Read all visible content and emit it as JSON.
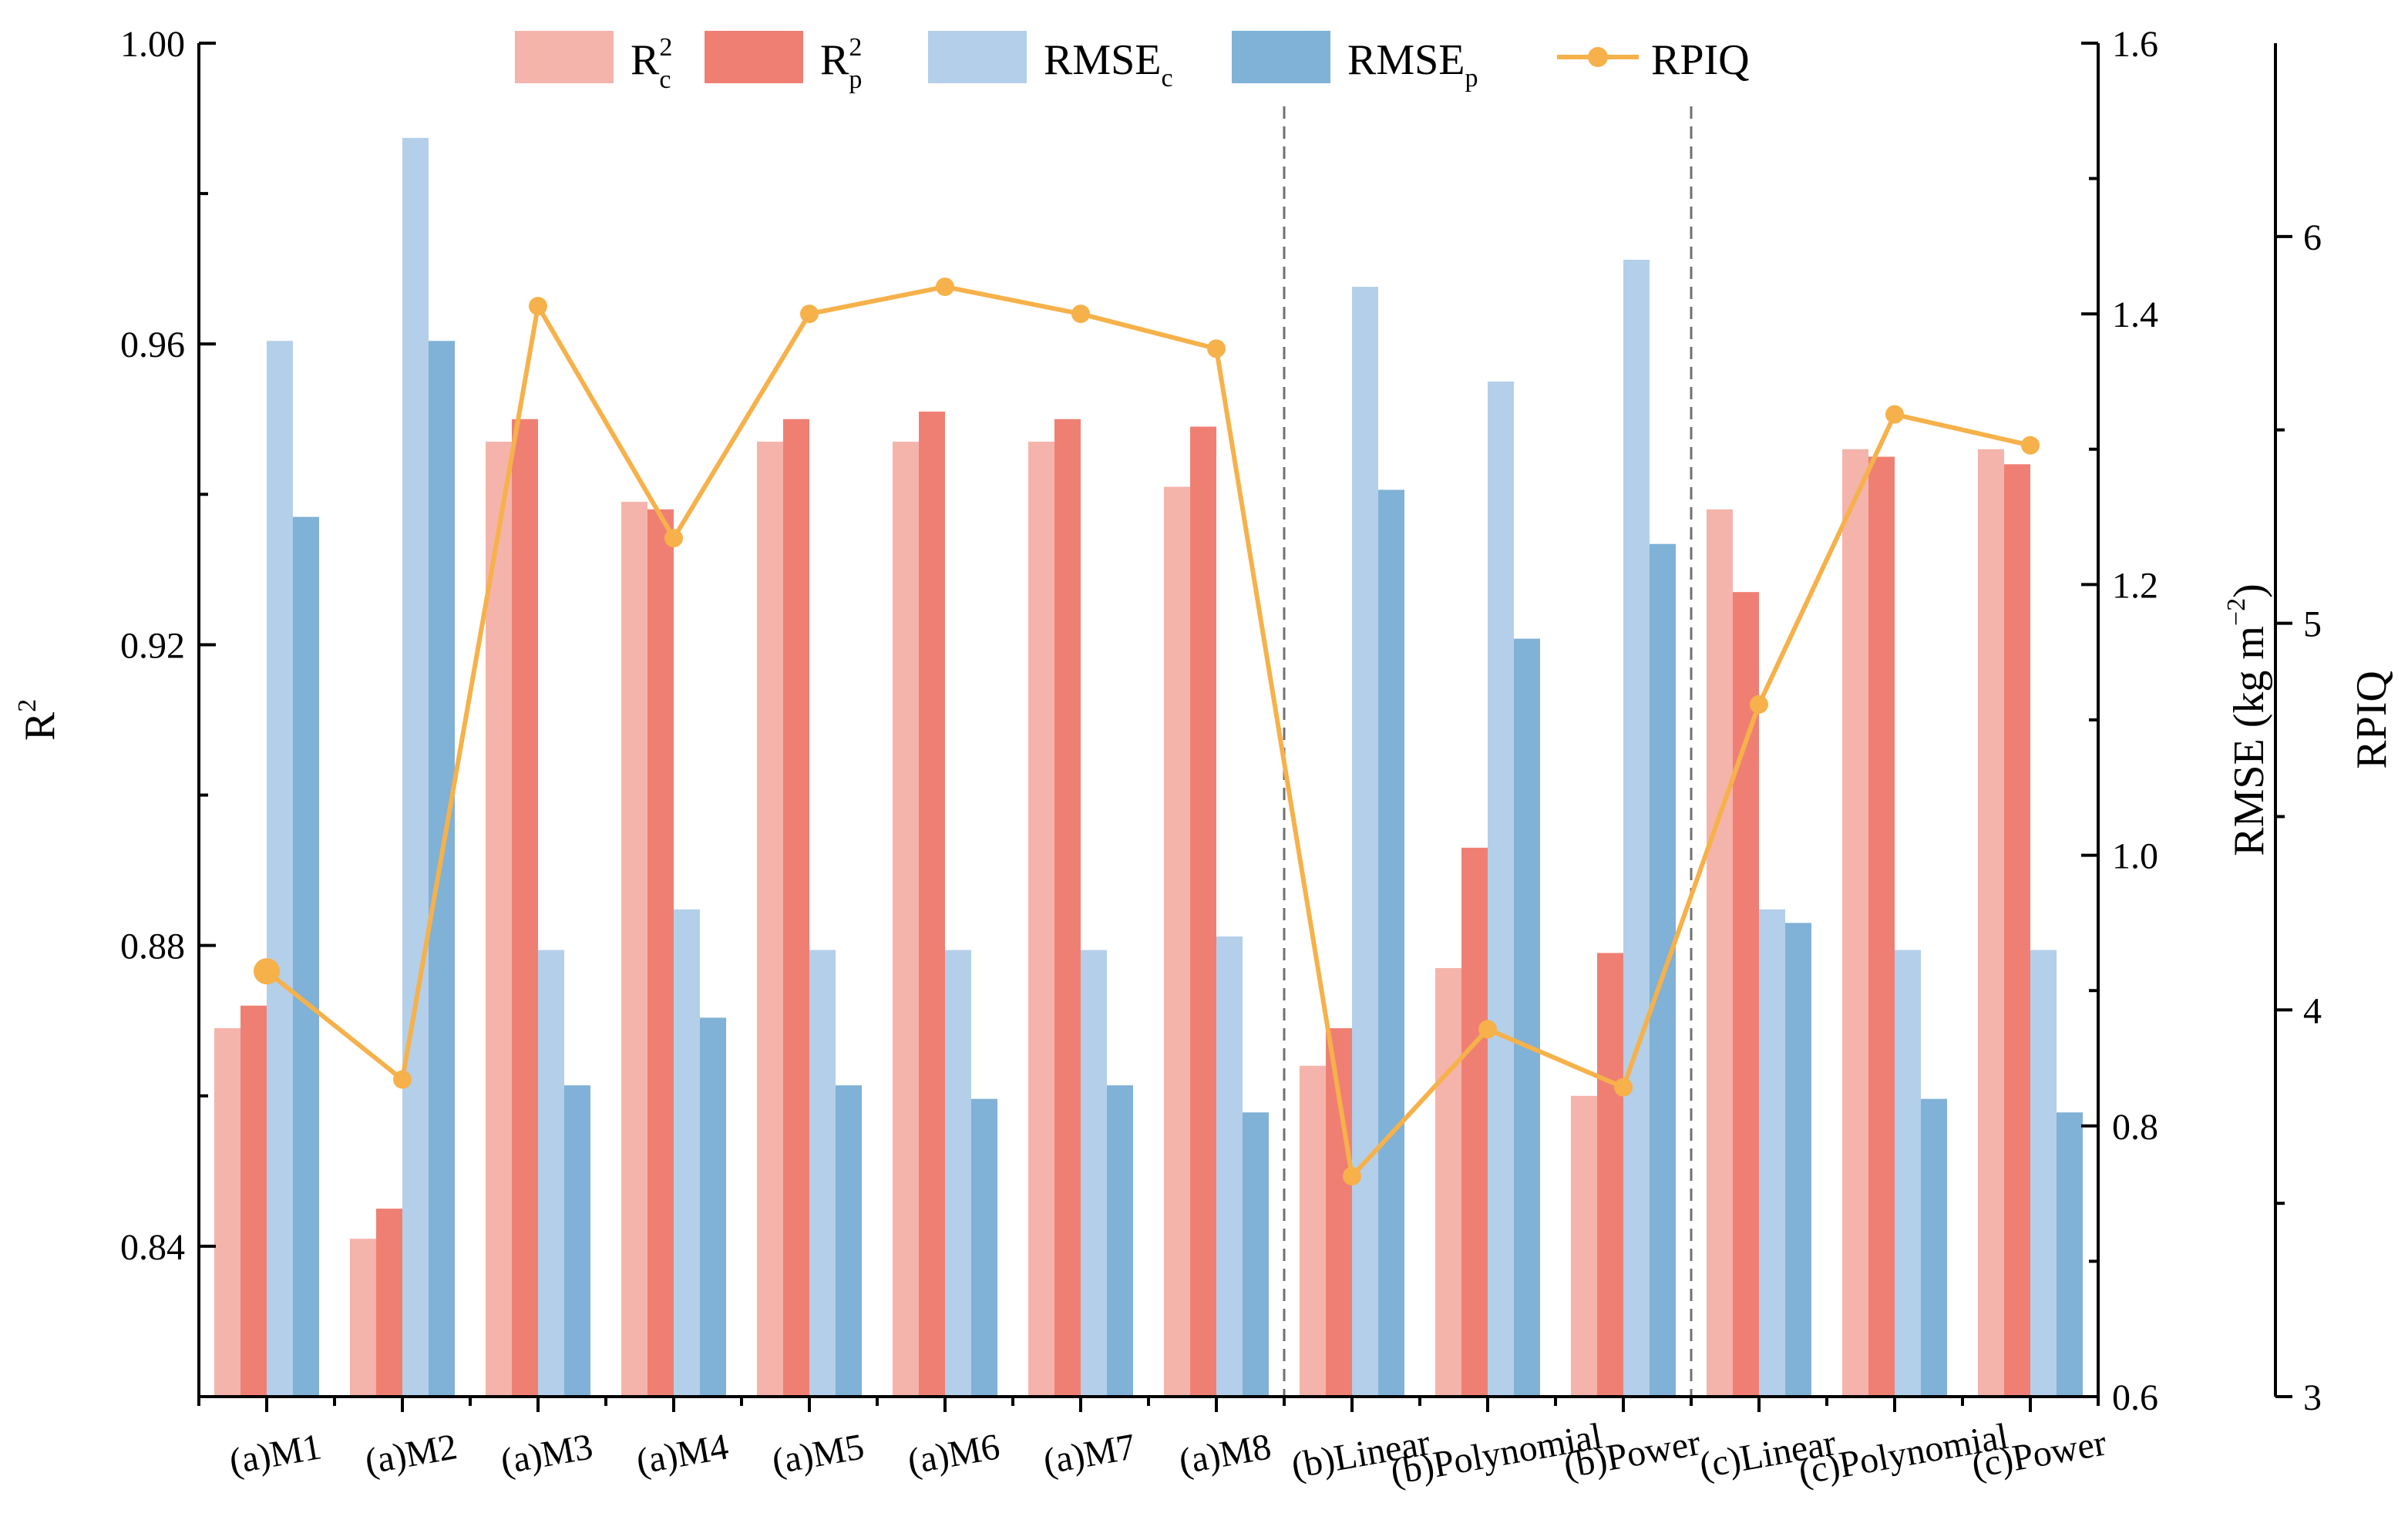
{
  "chart_data": {
    "type": "bar",
    "categories": [
      "(a)M1",
      "(a)M2",
      "(a)M3",
      "(a)M4",
      "(a)M5",
      "(a)M6",
      "(a)M7",
      "(a)M8",
      "(b)Linear",
      "(b)Polynomial",
      "(b)Power",
      "(c)Linear",
      "(c)Polynomial",
      "(c)Power"
    ],
    "group_dividers_after": [
      7,
      10
    ],
    "axes": {
      "r2": {
        "label": "R",
        "label_sup": "2",
        "ylim": [
          0.82,
          1.0
        ],
        "major_ticks": [
          0.84,
          0.88,
          0.92,
          0.96,
          1.0
        ],
        "tick_labels": [
          "0.84",
          "0.88",
          "0.92",
          "0.96",
          "1.00"
        ]
      },
      "rmse": {
        "label": "RMSE (kg m",
        "label_sup": "−2",
        "label_end": ")",
        "ylim": [
          0.6,
          1.6
        ],
        "major_ticks": [
          0.6,
          0.8,
          1.0,
          1.2,
          1.4,
          1.6
        ],
        "tick_labels": [
          "0.6",
          "0.8",
          "1.0",
          "1.2",
          "1.4",
          "1.6"
        ]
      },
      "rpiq": {
        "label": "RPIQ",
        "ylim": [
          3,
          6.5
        ],
        "major_ticks": [
          3,
          4,
          5,
          6
        ],
        "tick_labels": [
          "3",
          "4",
          "5",
          "6"
        ]
      }
    },
    "series": [
      {
        "key": "r2c",
        "name": "R",
        "sup": "2",
        "sub": "c",
        "axis": "r2",
        "color": "#f4b4ab",
        "values": [
          0.869,
          0.841,
          0.947,
          0.939,
          0.947,
          0.947,
          0.947,
          0.941,
          0.864,
          0.877,
          0.86,
          0.938,
          0.946,
          0.946
        ]
      },
      {
        "key": "r2p",
        "name": "R",
        "sup": "2",
        "sub": "p",
        "axis": "r2",
        "color": "#f07f73",
        "values": [
          0.872,
          0.845,
          0.95,
          0.938,
          0.95,
          0.951,
          0.95,
          0.949,
          0.869,
          0.893,
          0.879,
          0.927,
          0.945,
          0.944
        ]
      },
      {
        "key": "rmsec",
        "name": "RMSE",
        "sub": "c",
        "axis": "rmse",
        "color": "#b4cfe9",
        "values": [
          1.38,
          1.53,
          0.93,
          0.96,
          0.93,
          0.93,
          0.93,
          0.94,
          1.42,
          1.35,
          1.44,
          0.96,
          0.93,
          0.93
        ]
      },
      {
        "key": "rmsep",
        "name": "RMSE",
        "sub": "p",
        "axis": "rmse",
        "color": "#80b1d6",
        "values": [
          1.25,
          1.38,
          0.83,
          0.88,
          0.83,
          0.82,
          0.83,
          0.81,
          1.27,
          1.16,
          1.23,
          0.95,
          0.82,
          0.81
        ]
      },
      {
        "key": "rpiq",
        "name": "RPIQ",
        "axis": "rpiq",
        "type": "line",
        "color": "#f6b14a",
        "values": [
          4.1,
          3.82,
          5.82,
          5.22,
          5.8,
          5.87,
          5.8,
          5.71,
          3.57,
          3.95,
          3.8,
          4.79,
          5.54,
          5.46
        ]
      }
    ]
  }
}
